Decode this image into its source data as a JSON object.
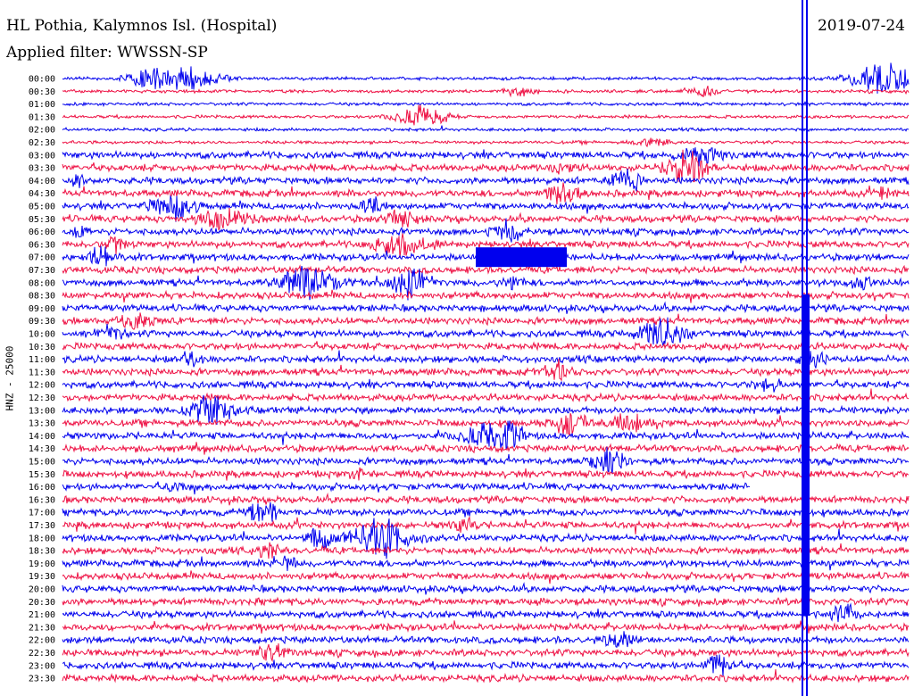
{
  "header": {
    "station": "HL Pothia, Kalymnos Isl. (Hospital)",
    "filter": "Applied filter: WWSSN-SP",
    "date": "2019-07-24"
  },
  "chart_data": {
    "type": "line",
    "title": "HL Pothia, Kalymnos Isl. (Hospital)",
    "ylabel": "HNZ - 25000",
    "rows": [
      "00:00",
      "00:30",
      "01:00",
      "01:30",
      "02:00",
      "02:30",
      "03:00",
      "03:30",
      "04:00",
      "04:30",
      "05:00",
      "05:30",
      "06:00",
      "06:30",
      "07:00",
      "07:30",
      "08:00",
      "08:30",
      "09:00",
      "09:30",
      "10:00",
      "10:30",
      "11:00",
      "11:30",
      "12:00",
      "12:30",
      "13:00",
      "13:30",
      "14:00",
      "14:30",
      "15:00",
      "15:30",
      "16:00",
      "16:30",
      "17:00",
      "17:30",
      "18:00",
      "18:30",
      "19:00",
      "19:30",
      "20:00",
      "20:30",
      "21:00",
      "21:30",
      "22:00",
      "22:30",
      "23:00",
      "23:30"
    ],
    "colors": [
      "#0000ee",
      "#ee1144"
    ],
    "grid": false,
    "legend": "none"
  }
}
